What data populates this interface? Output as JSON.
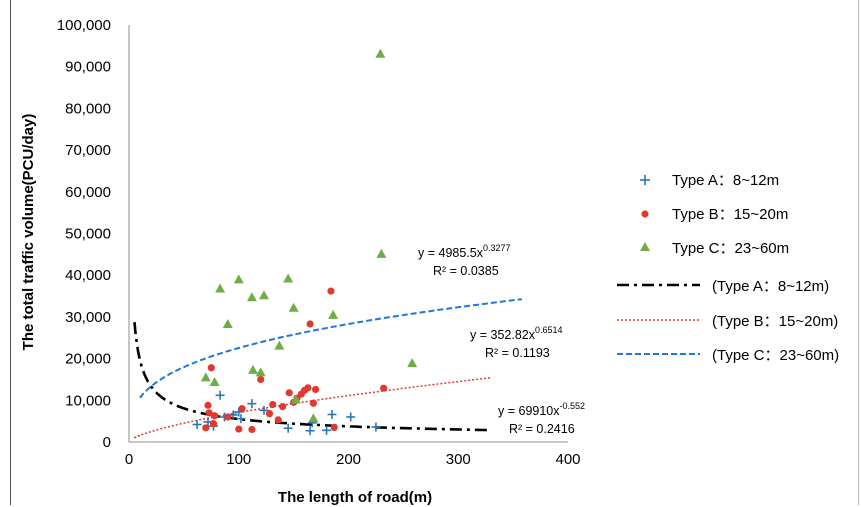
{
  "chart_data": {
    "type": "scatter",
    "xlabel": "The length of road(m)",
    "ylabel": "The total  traffic volume(PCU/day)",
    "xlim": [
      0,
      400
    ],
    "ylim": [
      0,
      100000
    ],
    "x_ticks": [
      "0",
      "100",
      "200",
      "300",
      "400"
    ],
    "y_ticks": [
      "0",
      "10,000",
      "20,000",
      "30,000",
      "40,000",
      "50,000",
      "60,000",
      "70,000",
      "80,000",
      "90,000",
      "100,000"
    ],
    "grid": false,
    "legend_position": "right",
    "series": [
      {
        "name": "Type A：8~12m",
        "marker": "plus",
        "color": "#2e74b5",
        "points": [
          [
            62,
            4200
          ],
          [
            72,
            4800
          ],
          [
            77,
            3800
          ],
          [
            83,
            11200
          ],
          [
            87,
            6000
          ],
          [
            95,
            6500
          ],
          [
            100,
            7200
          ],
          [
            102,
            5600
          ],
          [
            112,
            9200
          ],
          [
            123,
            7600
          ],
          [
            145,
            3300
          ],
          [
            165,
            2700
          ],
          [
            167,
            4600
          ],
          [
            180,
            2800
          ],
          [
            185,
            6600
          ],
          [
            202,
            6000
          ],
          [
            225,
            3600
          ]
        ]
      },
      {
        "name": "Type B：15~20m",
        "marker": "circle",
        "color": "#e0392f",
        "points": [
          [
            70,
            3400
          ],
          [
            72,
            8800
          ],
          [
            73,
            7000
          ],
          [
            75,
            17800
          ],
          [
            77,
            4400
          ],
          [
            78,
            6300
          ],
          [
            90,
            6000
          ],
          [
            100,
            3100
          ],
          [
            103,
            8000
          ],
          [
            112,
            3000
          ],
          [
            120,
            15000
          ],
          [
            128,
            6800
          ],
          [
            131,
            9000
          ],
          [
            136,
            5300
          ],
          [
            140,
            8500
          ],
          [
            146,
            11800
          ],
          [
            150,
            9500
          ],
          [
            153,
            10500
          ],
          [
            157,
            11500
          ],
          [
            160,
            12400
          ],
          [
            163,
            13000
          ],
          [
            165,
            28300
          ],
          [
            168,
            9300
          ],
          [
            170,
            12600
          ],
          [
            184,
            36200
          ],
          [
            187,
            3500
          ],
          [
            232,
            12900
          ]
        ]
      },
      {
        "name": "Type C：23~60m",
        "marker": "triangle",
        "color": "#70ad47",
        "points": [
          [
            70,
            15500
          ],
          [
            78,
            14400
          ],
          [
            83,
            36800
          ],
          [
            90,
            28300
          ],
          [
            100,
            39000
          ],
          [
            112,
            34700
          ],
          [
            113,
            17300
          ],
          [
            120,
            16700
          ],
          [
            123,
            35200
          ],
          [
            137,
            23100
          ],
          [
            145,
            39200
          ],
          [
            150,
            32200
          ],
          [
            152,
            10200
          ],
          [
            168,
            5700
          ],
          [
            186,
            30500
          ],
          [
            229,
            93100
          ],
          [
            230,
            45100
          ],
          [
            258,
            18900
          ]
        ]
      }
    ],
    "trendlines": [
      {
        "name": "(Type A：8~12m)",
        "style": "dash-dot",
        "color": "#000000",
        "a": 69910,
        "b": -0.552,
        "x_range": [
          5,
          328
        ],
        "equation": "y = 69910x",
        "exponent": "-0.552",
        "r2": "R² = 0.2416"
      },
      {
        "name": "(Type B：15~20m)",
        "style": "dotted",
        "color": "#e0392f",
        "a": 352.82,
        "b": 0.6514,
        "x_range": [
          5,
          330
        ],
        "equation": "y = 352.82x",
        "exponent": "0.6514",
        "r2": "R² = 0.1193"
      },
      {
        "name": "(Type C：23~60m)",
        "style": "dashed",
        "color": "#1f78e0",
        "a": 4985.5,
        "b": 0.3277,
        "x_range": [
          10,
          358
        ],
        "equation": "y = 4985.5x",
        "exponent": "0.3277",
        "r2": "R² = 0.0385"
      }
    ]
  }
}
